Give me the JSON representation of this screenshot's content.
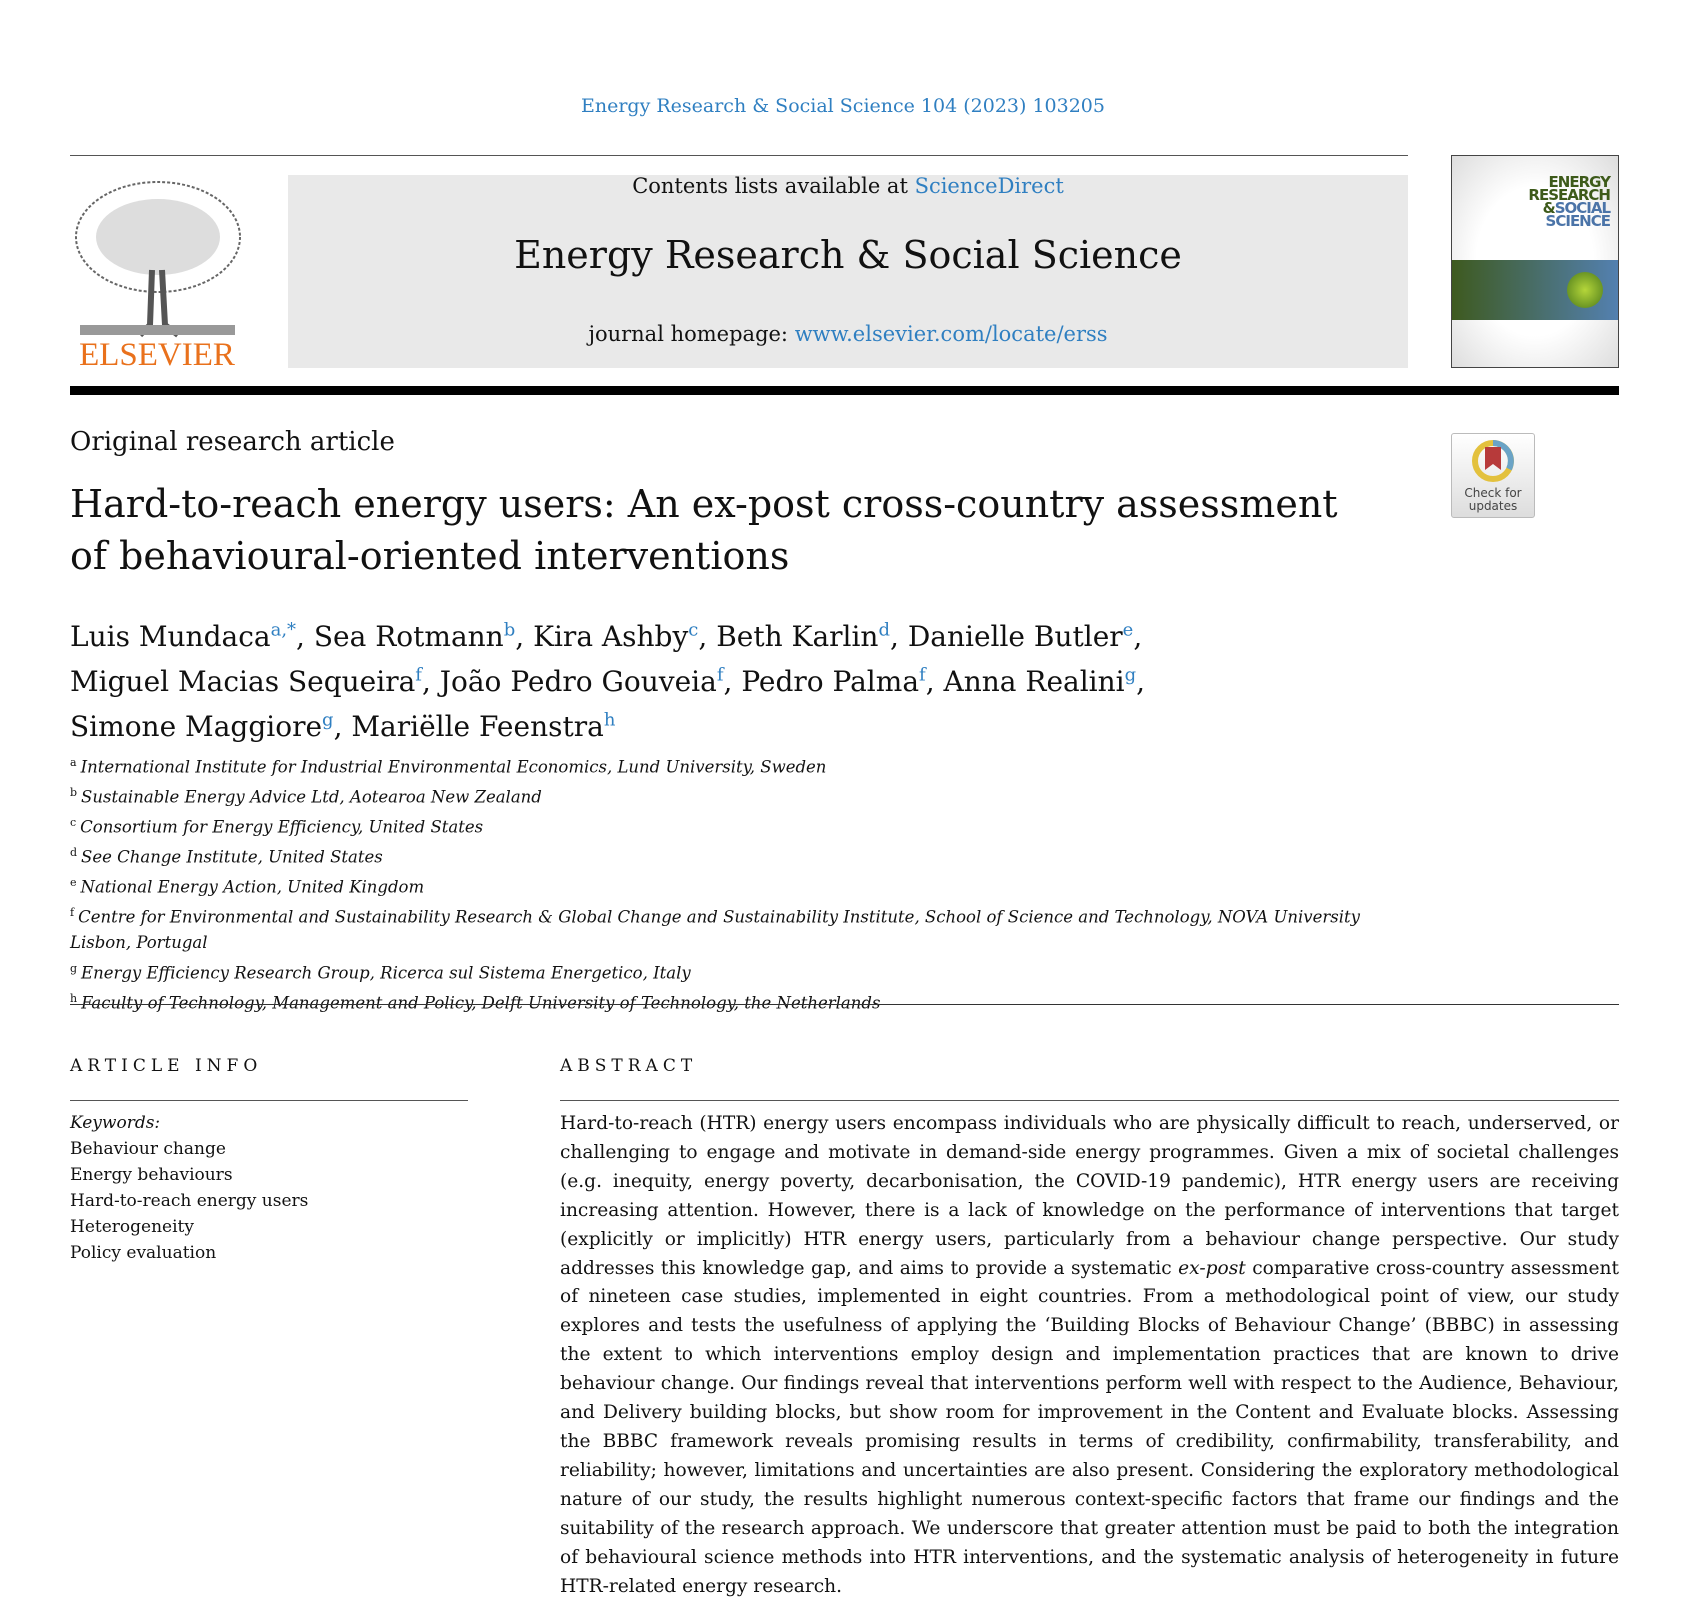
{
  "citation": "Energy Research & Social Science 104 (2023) 103205",
  "masthead": {
    "contents_prefix": "Contents lists available at ",
    "contents_link": "ScienceDirect",
    "journal_title": "Energy Research & Social Science",
    "homepage_prefix": "journal homepage: ",
    "homepage_link": "www.elsevier.com/locate/erss",
    "publisher": "ELSEVIER"
  },
  "cover": {
    "line1": "ENERGY",
    "line2": "RESEARCH",
    "line3_amp": "&",
    "line3": "SOCIAL",
    "line4": "SCIENCE"
  },
  "crossmark": {
    "label1": "Check for",
    "label2": "updates"
  },
  "article_type": "Original research article",
  "title": "Hard-to-reach energy users: An ex-post cross-country assessment of behavioural-oriented interventions",
  "authors": [
    {
      "name": "Luis Mundaca",
      "aff": "a,*"
    },
    {
      "name": "Sea Rotmann",
      "aff": "b"
    },
    {
      "name": "Kira Ashby",
      "aff": "c"
    },
    {
      "name": "Beth Karlin",
      "aff": "d"
    },
    {
      "name": "Danielle Butler",
      "aff": "e"
    },
    {
      "name": "Miguel Macias Sequeira",
      "aff": "f"
    },
    {
      "name": "João Pedro Gouveia",
      "aff": "f"
    },
    {
      "name": "Pedro Palma",
      "aff": "f"
    },
    {
      "name": "Anna Realini",
      "aff": "g"
    },
    {
      "name": "Simone Maggiore",
      "aff": "g"
    },
    {
      "name": "Mariëlle Feenstra",
      "aff": "h"
    }
  ],
  "affiliations": [
    {
      "key": "a",
      "text": "International Institute for Industrial Environmental Economics, Lund University, Sweden"
    },
    {
      "key": "b",
      "text": "Sustainable Energy Advice Ltd, Aotearoa New Zealand"
    },
    {
      "key": "c",
      "text": "Consortium for Energy Efficiency, United States"
    },
    {
      "key": "d",
      "text": "See Change Institute, United States"
    },
    {
      "key": "e",
      "text": "National Energy Action, United Kingdom"
    },
    {
      "key": "f",
      "text": "Centre for Environmental and Sustainability Research & Global Change and Sustainability Institute, School of Science and Technology, NOVA University Lisbon, Portugal"
    },
    {
      "key": "g",
      "text": "Energy Efficiency Research Group, Ricerca sul Sistema Energetico, Italy"
    },
    {
      "key": "h",
      "text": "Faculty of Technology, Management and Policy, Delft University of Technology, the Netherlands"
    }
  ],
  "article_info": {
    "heading": "ARTICLE INFO",
    "keywords_label": "Keywords:",
    "keywords": [
      "Behaviour change",
      "Energy behaviours",
      "Hard-to-reach energy users",
      "Heterogeneity",
      "Policy evaluation"
    ]
  },
  "abstract": {
    "heading": "ABSTRACT",
    "text_before": "Hard-to-reach (HTR) energy users encompass individuals who are physically difficult to reach, underserved, or challenging to engage and motivate in demand-side energy programmes. Given a mix of societal challenges (e.g. inequity, energy poverty, decarbonisation, the COVID-19 pandemic), HTR energy users are receiving increasing attention. However, there is a lack of knowledge on the performance of interventions that target (explicitly or implicitly) HTR energy users, particularly from a behaviour change perspective. Our study addresses this knowledge gap, and aims to provide a systematic ",
    "text_italic": "ex-post",
    "text_after": " comparative cross-country assessment of nineteen case studies, implemented in eight countries. From a methodological point of view, our study explores and tests the usefulness of applying the ‘Building Blocks of Behaviour Change’ (BBBC) in assessing the extent to which in­terventions employ design and implementation practices that are known to drive behaviour change. Our findings reveal that interventions perform well with respect to the Audience, Behaviour, and Delivery building blocks, but show room for improvement in the Content and Evaluate blocks. Assessing the BBBC framework reveals promising results in terms of credibility, confirmability, transferability, and reliability; however, limitations and uncertainties are also present. Considering the exploratory methodological nature of our study, the results highlight numerous context-specific factors that frame our findings and the suitability of the research approach. We underscore that greater attention must be paid to both the integration of behavioural science methods into HTR interventions, and the systematic analysis of heterogeneity in future HTR-related energy research."
  },
  "colors": {
    "link": "#2f7fc1",
    "elsevier_orange": "#e9711c",
    "masthead_gray": "#e9e9e9"
  }
}
